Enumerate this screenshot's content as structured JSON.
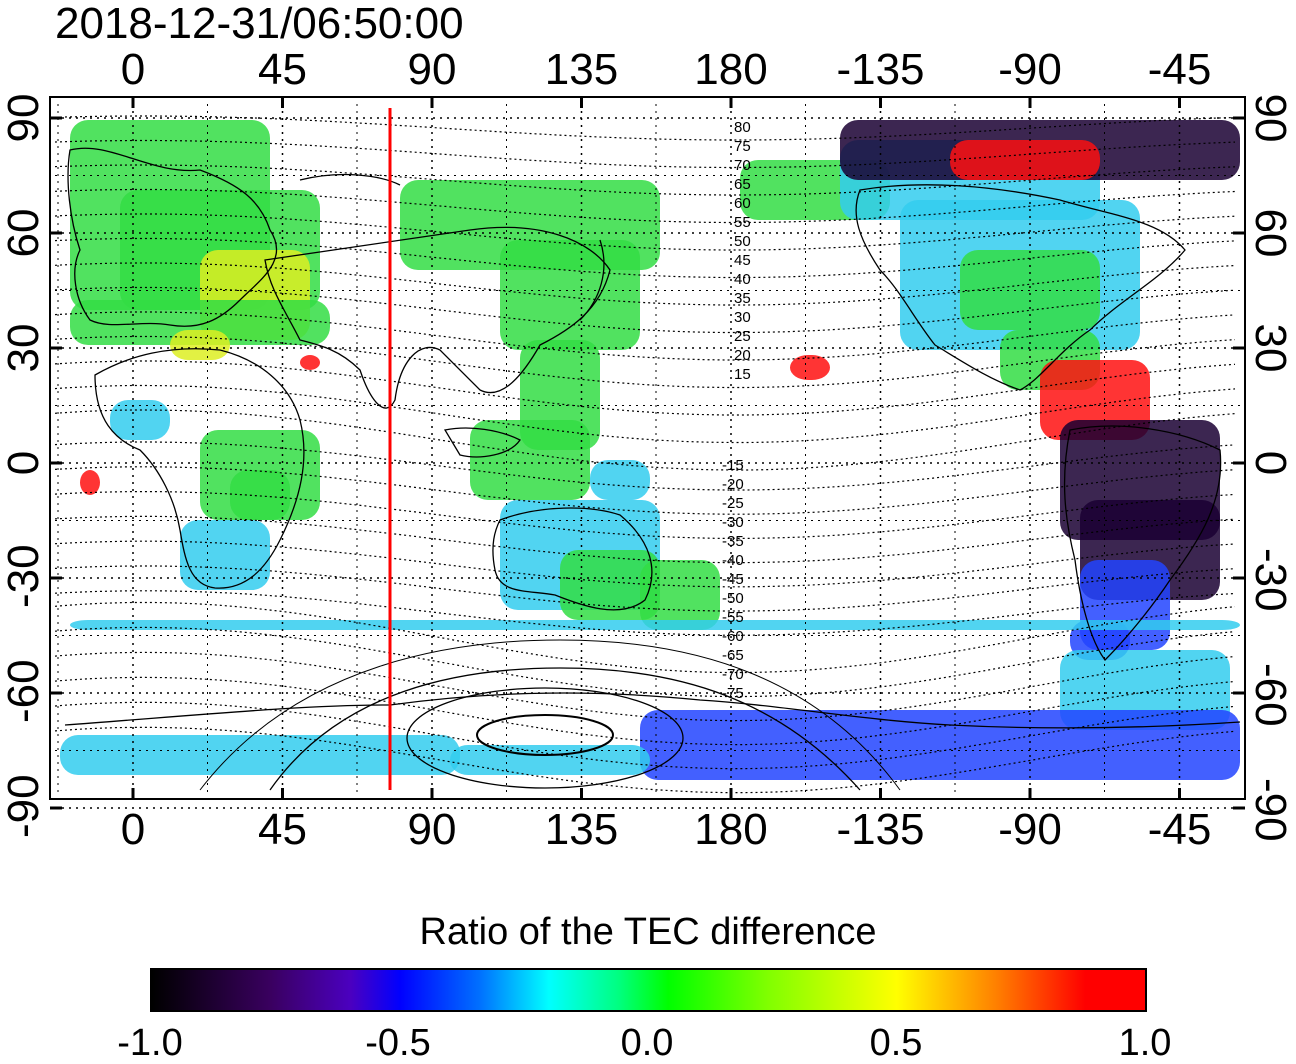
{
  "title": "2018-12-31/06:50:00",
  "lon_ticks": [
    "0",
    "45",
    "90",
    "135",
    "180",
    "-135",
    "-90",
    "-45"
  ],
  "lat_ticks_left": [
    "90",
    "60",
    "30",
    "0",
    "-30",
    "-60",
    "-90"
  ],
  "lat_ticks_right": [
    "90",
    "60",
    "30",
    "0",
    "-30",
    "-60",
    "-90"
  ],
  "contour_labels_north": [
    "80",
    "75",
    "70",
    "65",
    "60",
    "55",
    "50",
    "45",
    "40",
    "35",
    "30",
    "25",
    "20",
    "15"
  ],
  "contour_labels_south": [
    "-15",
    "-20",
    "-25",
    "-30",
    "-35",
    "-40",
    "-45",
    "-50",
    "-55",
    "-60",
    "-65",
    "-70",
    "-75"
  ],
  "colorbar": {
    "title": "Ratio of the TEC difference",
    "ticks": [
      "-1.0",
      "-0.5",
      "0.0",
      "0.5",
      "1.0"
    ],
    "min": -1.0,
    "max": 1.0
  },
  "marker_line": {
    "color": "#ff0000"
  },
  "data_colors": {
    "green": "#33dd44",
    "cyan": "#33ccee",
    "blue": "#2244ff",
    "dark": "#1a0033",
    "red": "#ff1111",
    "yellow": "#ddee22"
  }
}
